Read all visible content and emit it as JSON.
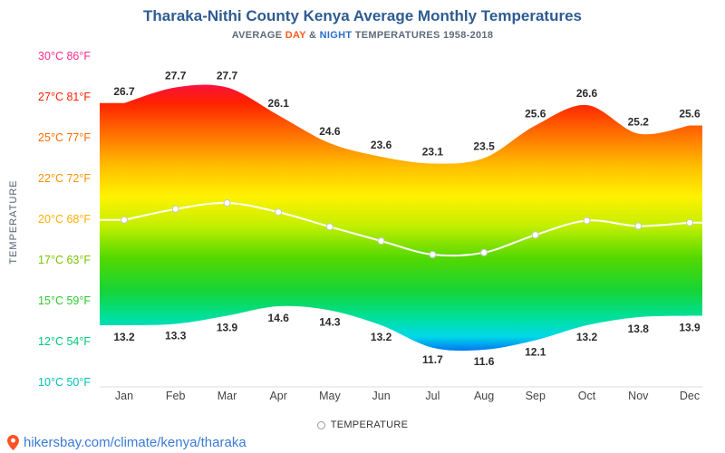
{
  "header": {
    "title": "Tharaka-Nithi County Kenya Average Monthly Temperatures",
    "subtitle_prefix": "AVERAGE ",
    "subtitle_day": "DAY",
    "subtitle_join": " & ",
    "subtitle_night": "NIGHT",
    "subtitle_suffix": " TEMPERATURES 1958-2018"
  },
  "axis": {
    "y_title": "TEMPERATURE"
  },
  "legend": {
    "label": "TEMPERATURE"
  },
  "footer": {
    "link": "hikersbay.com/climate/kenya/tharaka"
  },
  "colors": {
    "title": "#2e5b92",
    "subtitle": "#5f6b7a",
    "day_accent": "#ff5a1f",
    "night_accent": "#2a6fc9",
    "link": "#3a7bd5",
    "data_label": "#2b2b2b",
    "x_label": "#444444",
    "average_line": "#ffffff",
    "pin": "#ff5126"
  },
  "chart_data": {
    "type": "area",
    "title": "Tharaka-Nithi County Kenya Average Monthly Temperatures",
    "subtitle": "AVERAGE DAY & NIGHT TEMPERATURES 1958-2018",
    "categories": [
      "Jan",
      "Feb",
      "Mar",
      "Apr",
      "May",
      "Jun",
      "Jul",
      "Aug",
      "Sep",
      "Oct",
      "Nov",
      "Dec"
    ],
    "series": [
      {
        "name": "Day",
        "values": [
          26.7,
          27.7,
          27.7,
          26.1,
          24.6,
          23.6,
          23.1,
          23.5,
          25.6,
          26.6,
          25.2,
          25.6
        ],
        "labeled": true
      },
      {
        "name": "Night",
        "values": [
          13.2,
          13.3,
          13.9,
          14.6,
          14.3,
          13.2,
          11.7,
          11.6,
          12.1,
          13.2,
          13.8,
          13.9
        ],
        "labeled": true
      },
      {
        "name": "Average",
        "values": [
          19.95,
          20.5,
          20.8,
          20.35,
          19.45,
          18.4,
          17.4,
          17.55,
          18.85,
          19.9,
          19.5,
          19.75
        ],
        "labeled": false,
        "estimated_from_plot": true
      }
    ],
    "y_ticks": [
      {
        "c": "30°C",
        "f": "86°F",
        "value": 30,
        "color": "#ff2d8d"
      },
      {
        "c": "27°C",
        "f": "81°F",
        "value": 27,
        "color": "#ff1e00"
      },
      {
        "c": "25°C",
        "f": "77°F",
        "value": 25,
        "color": "#ff6a00"
      },
      {
        "c": "22°C",
        "f": "72°F",
        "value": 22,
        "color": "#ff9100"
      },
      {
        "c": "20°C",
        "f": "68°F",
        "value": 20,
        "color": "#ffb000"
      },
      {
        "c": "17°C",
        "f": "63°F",
        "value": 17,
        "color": "#7ac400"
      },
      {
        "c": "15°C",
        "f": "59°F",
        "value": 15,
        "color": "#2fc92f"
      },
      {
        "c": "12°C",
        "f": "54°F",
        "value": 12,
        "color": "#00c97a"
      },
      {
        "c": "10°C",
        "f": "50°F",
        "value": 10,
        "color": "#00c2b8"
      }
    ],
    "ylim": [
      10,
      30
    ],
    "grid": false,
    "legend_position": "bottom",
    "gradient": [
      {
        "o": 0.0,
        "c": "#ff2d8d"
      },
      {
        "o": 0.09,
        "c": "#f8133c"
      },
      {
        "o": 0.14,
        "c": "#ff2000"
      },
      {
        "o": 0.25,
        "c": "#ff7a00"
      },
      {
        "o": 0.34,
        "c": "#ffc000"
      },
      {
        "o": 0.43,
        "c": "#fff200"
      },
      {
        "o": 0.52,
        "c": "#c3ef00"
      },
      {
        "o": 0.62,
        "c": "#52d800"
      },
      {
        "o": 0.72,
        "c": "#16d437"
      },
      {
        "o": 0.8,
        "c": "#00e09a"
      },
      {
        "o": 0.86,
        "c": "#00d8e8"
      },
      {
        "o": 0.92,
        "c": "#0050f5"
      },
      {
        "o": 1.0,
        "c": "#0030dd"
      }
    ]
  }
}
